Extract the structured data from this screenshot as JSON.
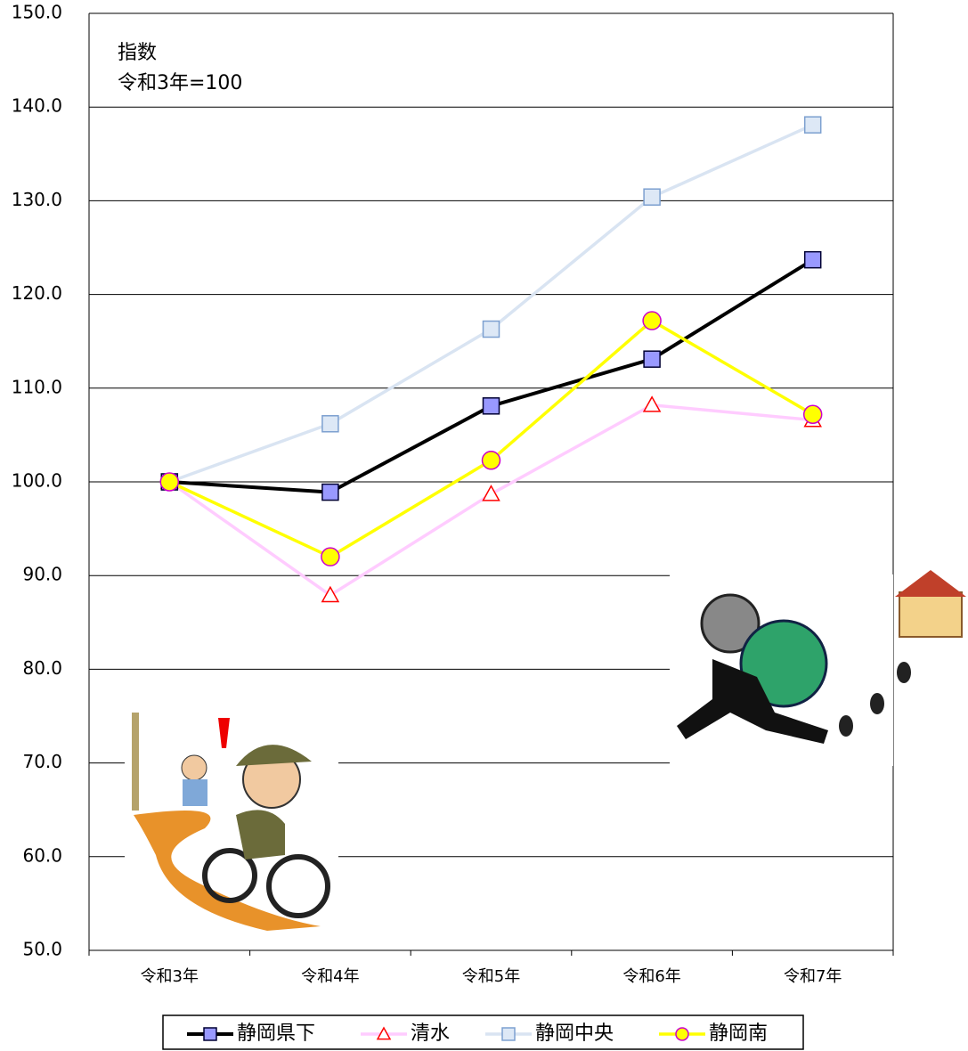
{
  "chart_data": {
    "type": "line",
    "annotation": [
      "指数",
      "令和3年=100"
    ],
    "categories": [
      "令和3年",
      "令和4年",
      "令和5年",
      "令和6年",
      "令和7年"
    ],
    "series": [
      {
        "name": "静岡県下",
        "color": "#000000",
        "marker": "square",
        "marker_fill": "#9999ff",
        "marker_stroke": "#000033",
        "values": [
          100.0,
          98.9,
          108.1,
          113.1,
          123.7
        ]
      },
      {
        "name": "清水",
        "color": "#ffccff",
        "marker": "triangle",
        "marker_fill": "#ffffff",
        "marker_stroke": "#ff0000",
        "values": [
          100.0,
          87.9,
          98.7,
          108.2,
          106.6
        ]
      },
      {
        "name": "静岡中央",
        "color": "#d9e4f2",
        "marker": "square",
        "marker_fill": "#dde8f6",
        "marker_stroke": "#7da0d0",
        "values": [
          100.0,
          106.2,
          116.3,
          130.4,
          138.1
        ]
      },
      {
        "name": "静岡南",
        "color": "#ffff00",
        "marker": "circle",
        "marker_fill": "#ffff00",
        "marker_stroke": "#cc00cc",
        "values": [
          100.0,
          92.0,
          102.3,
          117.2,
          107.2
        ]
      }
    ],
    "ylim": [
      50,
      150
    ],
    "yticks": [
      {
        "value": 50,
        "label": "50.0"
      },
      {
        "value": 60,
        "label": "60.0"
      },
      {
        "value": 70,
        "label": "70.0"
      },
      {
        "value": 80,
        "label": "80.0"
      },
      {
        "value": 90,
        "label": "90.0"
      },
      {
        "value": 100,
        "label": "100.0"
      },
      {
        "value": 110,
        "label": "110.0"
      },
      {
        "value": 120,
        "label": "120.0"
      },
      {
        "value": 130,
        "label": "130.0"
      },
      {
        "value": 140,
        "label": "140.0"
      },
      {
        "value": 150,
        "label": "150.0"
      }
    ],
    "grid": true,
    "legend": "bottom"
  }
}
